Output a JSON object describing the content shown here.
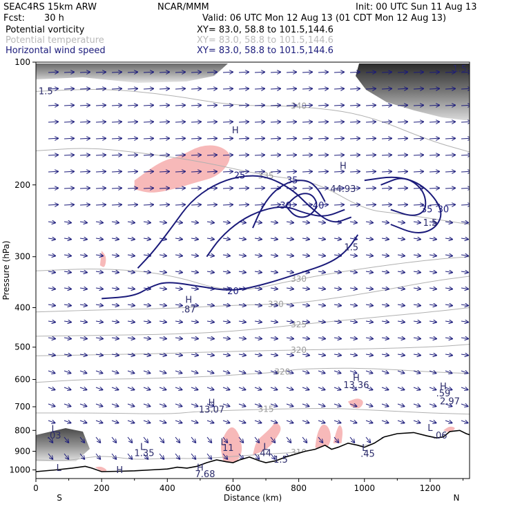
{
  "header": {
    "model": "SEAC4RS 15km ARW",
    "fcst_label": "Fcst:",
    "fcst_value": "30 h",
    "org": "NCAR/MMM",
    "init": "Init: 00 UTC Sun 11 Aug 13",
    "valid": "Valid: 06 UTC Mon 12 Aug 13 (01 CDT Mon 12 Aug 13)",
    "fields": [
      {
        "name": "Potential vorticity",
        "xy": "XY=  83.0, 58.8 to 101.5,144.6",
        "color": "#000000"
      },
      {
        "name": "Potential temperature",
        "xy": "XY=  83.0, 58.8 to 101.5,144.6",
        "color": "#b8b8b8"
      },
      {
        "name": "Horizontal wind speed",
        "xy": "XY=  83.0, 58.8 to 101.5,144.6",
        "color": "#1a1a7a"
      }
    ]
  },
  "chart_data": {
    "type": "cross-section",
    "xlabel": "Distance (km)",
    "ylabel": "Pressure (hPa)",
    "xlim": [
      0,
      1320
    ],
    "ylim": [
      100,
      1050
    ],
    "y_scale": "log",
    "xticks": [
      0,
      200,
      400,
      600,
      800,
      1000,
      1200
    ],
    "yticks": [
      100,
      200,
      300,
      400,
      500,
      600,
      700,
      800,
      900,
      1000
    ],
    "x_end_labels": {
      "left": "S",
      "right": "N"
    },
    "theta_contours": [
      {
        "label": "340",
        "points": [
          [
            0,
            118
          ],
          [
            200,
            116
          ],
          [
            400,
            120
          ],
          [
            600,
            128
          ],
          [
            800,
            128
          ],
          [
            1000,
            134
          ],
          [
            1200,
            156
          ],
          [
            1320,
            166
          ]
        ]
      },
      {
        "label": "335",
        "points": [
          [
            0,
            165
          ],
          [
            150,
            162
          ],
          [
            300,
            166
          ],
          [
            500,
            175
          ],
          [
            700,
            190
          ],
          [
            850,
            196
          ],
          [
            1000,
            230
          ],
          [
            1100,
            235
          ],
          [
            1320,
            250
          ]
        ]
      },
      {
        "label": "330",
        "points": [
          [
            0,
            325
          ],
          [
            200,
            320
          ],
          [
            400,
            330
          ],
          [
            600,
            370
          ],
          [
            800,
            340
          ],
          [
            1000,
            320
          ],
          [
            1200,
            305
          ],
          [
            1320,
            300
          ]
        ]
      },
      {
        "label": "330",
        "points": [
          [
            0,
            410
          ],
          [
            200,
            405
          ],
          [
            400,
            402
          ],
          [
            600,
            395
          ],
          [
            730,
            392
          ],
          [
            800,
            390
          ],
          [
            1000,
            370
          ],
          [
            1200,
            345
          ],
          [
            1320,
            335
          ]
        ]
      },
      {
        "label": "325",
        "points": [
          [
            0,
            470
          ],
          [
            200,
            468
          ],
          [
            400,
            465
          ],
          [
            600,
            458
          ],
          [
            800,
            440
          ],
          [
            1000,
            425
          ],
          [
            1200,
            410
          ],
          [
            1320,
            400
          ]
        ]
      },
      {
        "label": "320",
        "points": [
          [
            0,
            525
          ],
          [
            200,
            522
          ],
          [
            400,
            518
          ],
          [
            600,
            512
          ],
          [
            800,
            508
          ],
          [
            1000,
            505
          ],
          [
            1200,
            500
          ],
          [
            1320,
            492
          ]
        ]
      },
      {
        "label": "320",
        "points": [
          [
            0,
            610
          ],
          [
            150,
            600
          ],
          [
            300,
            598
          ],
          [
            500,
            592
          ],
          [
            650,
            582
          ],
          [
            750,
            575
          ],
          [
            800,
            565
          ],
          [
            1000,
            562
          ],
          [
            1200,
            575
          ],
          [
            1320,
            580
          ]
        ]
      },
      {
        "label": "315",
        "points": [
          [
            0,
            725
          ],
          [
            200,
            725
          ],
          [
            400,
            730
          ],
          [
            500,
            718
          ],
          [
            700,
            710
          ],
          [
            900,
            705
          ],
          [
            1050,
            715
          ],
          [
            1200,
            725
          ],
          [
            1320,
            730
          ]
        ]
      },
      {
        "label": "310",
        "points": [
          [
            0,
            945
          ],
          [
            100,
            950
          ],
          [
            200,
            920
          ],
          [
            300,
            945
          ],
          [
            400,
            935
          ],
          [
            500,
            940
          ],
          [
            650,
            920
          ],
          [
            800,
            905
          ],
          [
            900,
            895
          ],
          [
            1000,
            870
          ],
          [
            1100,
            850
          ],
          [
            1200,
            840
          ],
          [
            1320,
            830
          ]
        ]
      }
    ],
    "wind_speed_contours": [
      {
        "label": "20",
        "points": [
          [
            200,
            380
          ],
          [
            300,
            375
          ],
          [
            350,
            355
          ],
          [
            400,
            345
          ],
          [
            500,
            355
          ],
          [
            600,
            365
          ],
          [
            700,
            350
          ],
          [
            800,
            330
          ],
          [
            900,
            310
          ],
          [
            950,
            288
          ],
          [
            980,
            265
          ]
        ]
      },
      {
        "label": "25",
        "points": [
          [
            310,
            320
          ],
          [
            360,
            290
          ],
          [
            420,
            250
          ],
          [
            470,
            220
          ],
          [
            540,
            200
          ],
          [
            620,
            190
          ],
          [
            700,
            190
          ],
          [
            780,
            205
          ],
          [
            830,
            225
          ],
          [
            900,
            250
          ],
          [
            960,
            240
          ]
        ]
      },
      {
        "label": "30",
        "points": [
          [
            520,
            300
          ],
          [
            560,
            270
          ],
          [
            620,
            245
          ],
          [
            690,
            230
          ],
          [
            760,
            225
          ],
          [
            820,
            235
          ],
          [
            880,
            240
          ],
          [
            940,
            230
          ]
        ]
      },
      {
        "label": "35",
        "points": [
          [
            660,
            255
          ],
          [
            690,
            225
          ],
          [
            730,
            205
          ],
          [
            780,
            195
          ],
          [
            830,
            195
          ],
          [
            860,
            205
          ],
          [
            880,
            220
          ]
        ]
      },
      {
        "label": "40",
        "points": [
          [
            760,
            225
          ],
          [
            800,
            210
          ],
          [
            840,
            210
          ],
          [
            860,
            225
          ],
          [
            830,
            240
          ],
          [
            790,
            240
          ],
          [
            760,
            225
          ]
        ]
      },
      {
        "label": "30",
        "points": [
          [
            1000,
            195
          ],
          [
            1100,
            190
          ],
          [
            1180,
            200
          ],
          [
            1240,
            230
          ],
          [
            1220,
            255
          ],
          [
            1160,
            265
          ],
          [
            1080,
            250
          ]
        ]
      },
      {
        "label": "35",
        "points": [
          [
            1050,
            200
          ],
          [
            1120,
            190
          ],
          [
            1180,
            205
          ],
          [
            1190,
            230
          ],
          [
            1150,
            240
          ],
          [
            1080,
            230
          ]
        ]
      }
    ],
    "labels": [
      {
        "text": "1.5",
        "x": 30,
        "y": 118
      },
      {
        "text": "1.5",
        "x": 1290,
        "y": 104
      },
      {
        "text": "1.5",
        "x": 960,
        "y": 285
      },
      {
        "text": "1.5",
        "x": 1200,
        "y": 248
      },
      {
        "text": "H",
        "x": 607,
        "y": 147
      },
      {
        "text": "H",
        "x": 935,
        "y": 180
      },
      {
        "text": "44.93",
        "x": 935,
        "y": 205
      },
      {
        "text": "H",
        "x": 465,
        "y": 383
      },
      {
        "text": ".87",
        "x": 465,
        "y": 405
      },
      {
        "text": "H",
        "x": 975,
        "y": 595
      },
      {
        "text": "13.36",
        "x": 975,
        "y": 620
      },
      {
        "text": "H",
        "x": 1240,
        "y": 625
      },
      {
        "text": ".59",
        "x": 1240,
        "y": 650
      },
      {
        "text": "2.97",
        "x": 1260,
        "y": 680
      },
      {
        "text": "H",
        "x": 535,
        "y": 685
      },
      {
        "text": "13.07",
        "x": 535,
        "y": 712
      },
      {
        "text": "L",
        "x": 55,
        "y": 795
      },
      {
        "text": ".03",
        "x": 55,
        "y": 825
      },
      {
        "text": "L",
        "x": 325,
        "y": 880
      },
      {
        "text": "1.35",
        "x": 330,
        "y": 910
      },
      {
        "text": "L",
        "x": 570,
        "y": 855
      },
      {
        "text": "11",
        "x": 585,
        "y": 885
      },
      {
        "text": "L",
        "x": 700,
        "y": 880
      },
      {
        "text": ".44",
        "x": 695,
        "y": 910
      },
      {
        "text": "1.5",
        "x": 745,
        "y": 945
      },
      {
        "text": "L",
        "x": 1000,
        "y": 885
      },
      {
        "text": ".45",
        "x": 1010,
        "y": 915
      },
      {
        "text": "L",
        "x": 1200,
        "y": 790
      },
      {
        "text": ".06",
        "x": 1230,
        "y": 825
      },
      {
        "text": "L",
        "x": 70,
        "y": 990
      },
      {
        "text": "H",
        "x": 255,
        "y": 1002
      },
      {
        "text": "H",
        "x": 500,
        "y": 988
      },
      {
        "text": "7.68",
        "x": 515,
        "y": 1025
      }
    ],
    "pv_highlight_regions": [
      {
        "points": [
          [
            300,
            195
          ],
          [
            380,
            175
          ],
          [
            440,
            170
          ],
          [
            500,
            160
          ],
          [
            560,
            160
          ],
          [
            600,
            170
          ],
          [
            560,
            190
          ],
          [
            480,
            198
          ],
          [
            420,
            205
          ],
          [
            350,
            210
          ],
          [
            300,
            205
          ]
        ]
      },
      {
        "points": [
          [
            200,
            290
          ],
          [
            215,
            300
          ],
          [
            210,
            320
          ],
          [
            195,
            315
          ]
        ]
      },
      {
        "points": [
          [
            570,
            950
          ],
          [
            560,
            870
          ],
          [
            580,
            800
          ],
          [
            600,
            780
          ],
          [
            620,
            820
          ],
          [
            630,
            900
          ],
          [
            610,
            960
          ]
        ]
      },
      {
        "points": [
          [
            660,
            920
          ],
          [
            670,
            850
          ],
          [
            700,
            810
          ],
          [
            720,
            780
          ],
          [
            730,
            760
          ],
          [
            750,
            790
          ],
          [
            730,
            840
          ],
          [
            710,
            880
          ],
          [
            690,
            900
          ]
        ]
      },
      {
        "points": [
          [
            850,
            880
          ],
          [
            855,
            820
          ],
          [
            870,
            770
          ],
          [
            890,
            780
          ],
          [
            900,
            830
          ],
          [
            890,
            880
          ],
          [
            870,
            900
          ]
        ]
      },
      {
        "points": [
          [
            905,
            860
          ],
          [
            915,
            800
          ],
          [
            925,
            770
          ],
          [
            935,
            800
          ],
          [
            930,
            860
          ]
        ]
      },
      {
        "points": [
          [
            950,
            680
          ],
          [
            980,
            665
          ],
          [
            1000,
            680
          ],
          [
            985,
            710
          ],
          [
            960,
            700
          ]
        ]
      },
      {
        "points": [
          [
            1240,
            800
          ],
          [
            1260,
            780
          ],
          [
            1280,
            790
          ],
          [
            1260,
            810
          ]
        ]
      },
      {
        "points": [
          [
            180,
            985
          ],
          [
            200,
            980
          ],
          [
            220,
            1005
          ],
          [
            200,
            1010
          ]
        ]
      }
    ],
    "terrain_pressure": [
      [
        0,
        1010
      ],
      [
        60,
        1000
      ],
      [
        110,
        990
      ],
      [
        150,
        980
      ],
      [
        170,
        990
      ],
      [
        200,
        1010
      ],
      [
        250,
        1008
      ],
      [
        300,
        1005
      ],
      [
        350,
        1000
      ],
      [
        400,
        995
      ],
      [
        430,
        985
      ],
      [
        460,
        990
      ],
      [
        490,
        980
      ],
      [
        520,
        960
      ],
      [
        550,
        945
      ],
      [
        580,
        955
      ],
      [
        600,
        960
      ],
      [
        620,
        945
      ],
      [
        650,
        930
      ],
      [
        680,
        950
      ],
      [
        700,
        960
      ],
      [
        730,
        950
      ],
      [
        760,
        930
      ],
      [
        790,
        915
      ],
      [
        820,
        900
      ],
      [
        850,
        890
      ],
      [
        880,
        870
      ],
      [
        900,
        890
      ],
      [
        920,
        880
      ],
      [
        950,
        860
      ],
      [
        980,
        870
      ],
      [
        1000,
        880
      ],
      [
        1030,
        860
      ],
      [
        1060,
        830
      ],
      [
        1100,
        815
      ],
      [
        1150,
        810
      ],
      [
        1190,
        825
      ],
      [
        1220,
        835
      ],
      [
        1240,
        830
      ],
      [
        1260,
        805
      ],
      [
        1290,
        800
      ],
      [
        1310,
        815
      ],
      [
        1320,
        820
      ]
    ]
  }
}
